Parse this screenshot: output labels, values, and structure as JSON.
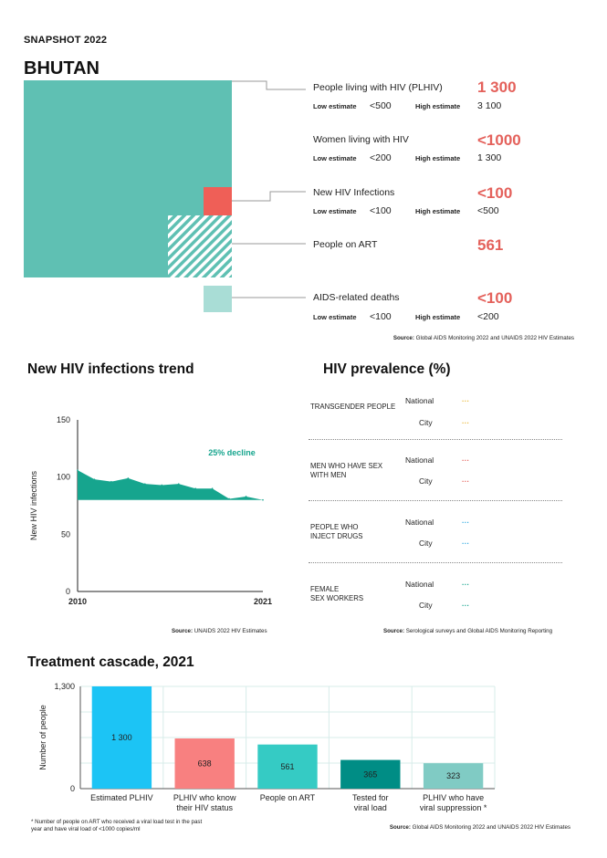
{
  "header": {
    "kicker": "SNAPSHOT 2022",
    "country": "BHUTAN"
  },
  "colors": {
    "teal": "#5fc0b3",
    "red": "#ef5f57",
    "light_teal": "#a9ddd6",
    "accent": "#e4615b",
    "cyan": "#1cc4f5",
    "pink": "#f88080",
    "mid_teal": "#35cbc4",
    "dark_teal": "#008d85",
    "pale_teal": "#80cbc4",
    "trend": "#16a58e"
  },
  "snapshot": {
    "source": "Global AIDS Monitoring 2022 and UNAIDS 2022 HIV Estimates",
    "source_label": "Source:",
    "low_label": "Low estimate",
    "high_label": "High estimate",
    "items": [
      {
        "label": "People living with HIV (PLHIV)",
        "value": "1 300",
        "low": "<500",
        "high": "3 100"
      },
      {
        "label": "Women living with HIV",
        "value": "<1000",
        "low": "<200",
        "high": "1 300"
      },
      {
        "label": "New HIV Infections",
        "value": "<100",
        "low": "<100",
        "high": "<500"
      },
      {
        "label": "People on ART",
        "value": "561"
      },
      {
        "label": "AIDS-related deaths",
        "value": "<100",
        "low": "<100",
        "high": "<200"
      }
    ]
  },
  "trend": {
    "title": "New HIV infections trend",
    "source_label": "Source:",
    "source": "UNAIDS 2022 HIV Estimates"
  },
  "prevalence": {
    "title": "HIV prevalence (%)",
    "source_label": "Source:",
    "source": "Serological surveys and Global AIDS Monitoring Reporting",
    "national_label": "National",
    "city_label": "City",
    "groups": [
      {
        "name_line1": "TRANSGENDER PEOPLE",
        "name_line2": "",
        "national": "...",
        "city": "...",
        "dot_color": "#e9b838"
      },
      {
        "name_line1": "MEN WHO HAVE SEX",
        "name_line2": "WITH MEN",
        "national": "...",
        "city": "...",
        "dot_color": "#e4615b"
      },
      {
        "name_line1": "PEOPLE WHO",
        "name_line2": "INJECT DRUGS",
        "national": "...",
        "city": "...",
        "dot_color": "#2fa9e0"
      },
      {
        "name_line1": "FEMALE",
        "name_line2": "SEX WORKERS",
        "national": "...",
        "city": "...",
        "dot_color": "#16a58e"
      }
    ]
  },
  "cascade": {
    "title": "Treatment cascade, 2021",
    "note_line1": "* Number of people on ART who received a viral load test in the past",
    "note_line2": "year and have viral load of <1000 copies/ml",
    "source_label": "Source:",
    "source": "Global AIDS Monitoring 2022 and UNAIDS 2022 HIV Estimates"
  },
  "chart_data": [
    {
      "type": "area",
      "title": "New HIV infections trend",
      "xlabel": "",
      "ylabel": "New HIV infections",
      "x": [
        2010,
        2011,
        2012,
        2013,
        2014,
        2015,
        2016,
        2017,
        2018,
        2019,
        2020,
        2021
      ],
      "values": [
        106,
        98,
        96,
        99,
        94,
        93,
        94,
        90,
        90,
        81,
        83,
        80
      ],
      "baseline": 80,
      "ylim": [
        0,
        150
      ],
      "yticks": [
        0,
        50,
        100,
        150
      ],
      "xtick_labels": [
        "2010",
        "2021"
      ],
      "annotation": "25% decline"
    },
    {
      "type": "bar",
      "title": "Treatment cascade, 2021",
      "ylabel": "Number of people",
      "categories": [
        "Estimated PLHIV",
        "PLHIV who know their HIV status",
        "People on ART",
        "Tested for viral load",
        "PLHIV who have viral suppression *"
      ],
      "category_lines": [
        [
          "Estimated PLHIV"
        ],
        [
          "PLHIV who know",
          "their HIV status"
        ],
        [
          "People on ART"
        ],
        [
          "Tested for",
          "viral load"
        ],
        [
          "PLHIV who have",
          "viral suppression *"
        ]
      ],
      "values": [
        1300,
        638,
        561,
        365,
        323
      ],
      "value_labels": [
        "1 300",
        "638",
        "561",
        "365",
        "323"
      ],
      "bar_colors": [
        "#1cc4f5",
        "#f88080",
        "#35cbc4",
        "#008d85",
        "#80cbc4"
      ],
      "ylim": [
        0,
        1300
      ],
      "ytick_labels": [
        "0",
        "1,300"
      ]
    }
  ]
}
